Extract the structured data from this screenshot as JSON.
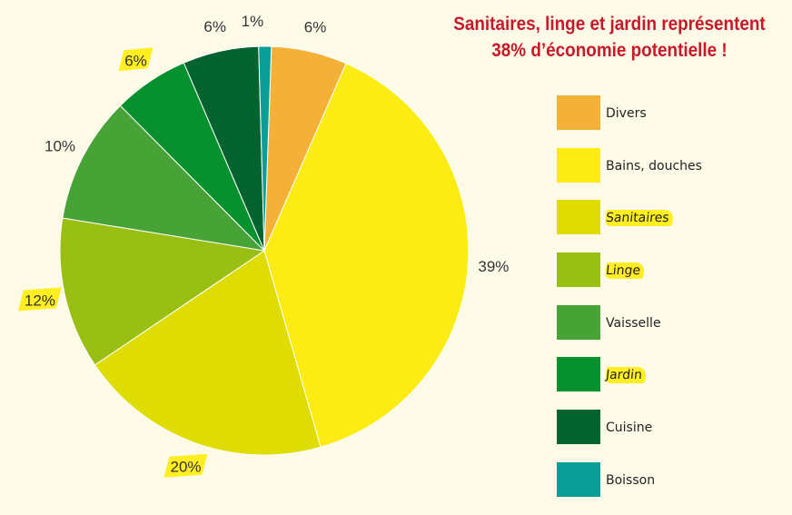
{
  "headline": {
    "line1": "Sanitaires, linge et jardin représentent",
    "line2": "38% d’économie potentielle !"
  },
  "colors": {
    "headline": "#c8192a",
    "highlight": "#ffee22",
    "background": "#fdfbe8"
  },
  "chart_data": {
    "type": "pie",
    "start_angle_deg": 2,
    "direction": "clockwise",
    "slices": [
      {
        "label": "Divers",
        "value": 6,
        "pct_label": "6%",
        "color": "#f5b137",
        "highlight_label": false,
        "highlight_pct": false
      },
      {
        "label": "Bains, douches",
        "value": 39,
        "pct_label": "39%",
        "color": "#fcec13",
        "highlight_label": false,
        "highlight_pct": false
      },
      {
        "label": "Sanitaires",
        "value": 20,
        "pct_label": "20%",
        "color": "#dedc00",
        "highlight_label": true,
        "highlight_pct": true
      },
      {
        "label": "Linge",
        "value": 12,
        "pct_label": "12%",
        "color": "#99bf12",
        "highlight_label": true,
        "highlight_pct": true
      },
      {
        "label": "Vaisselle",
        "value": 10,
        "pct_label": "10%",
        "color": "#47a335",
        "highlight_label": false,
        "highlight_pct": false
      },
      {
        "label": "Jardin",
        "value": 6,
        "pct_label": "6%",
        "color": "#07902e",
        "highlight_label": true,
        "highlight_pct": true
      },
      {
        "label": "Cuisine",
        "value": 6,
        "pct_label": "6%",
        "color": "#05632f",
        "highlight_label": false,
        "highlight_pct": false
      },
      {
        "label": "Boisson",
        "value": 1,
        "pct_label": "1%",
        "color": "#0b9e96",
        "highlight_label": false,
        "highlight_pct": false
      }
    ]
  }
}
